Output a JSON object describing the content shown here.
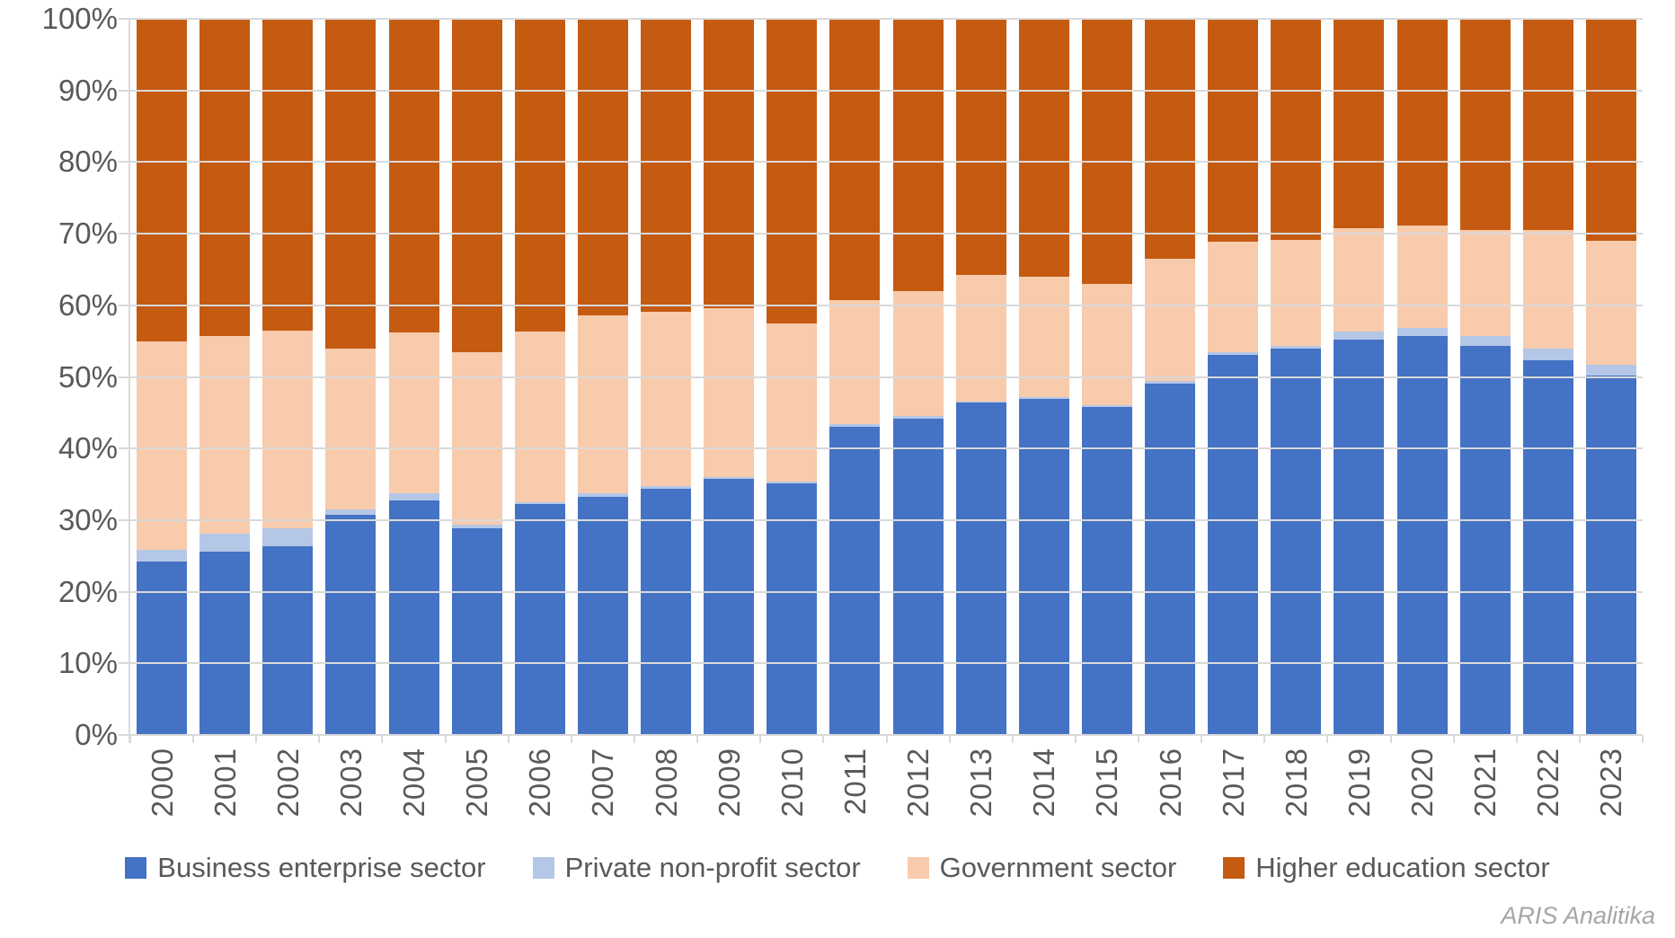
{
  "chart_data": {
    "type": "bar",
    "subtype": "stacked-100-percent",
    "title": "",
    "categories": [
      "2000",
      "2001",
      "2002",
      "2003",
      "2004",
      "2005",
      "2006",
      "2007",
      "2008",
      "2009",
      "2010",
      "2011",
      "2012",
      "2013",
      "2014",
      "2015",
      "2016",
      "2017",
      "2018",
      "2019",
      "2020",
      "2021",
      "2022",
      "2023"
    ],
    "series": [
      {
        "name": "Business enterprise sector",
        "color": "#4472C4",
        "values": [
          24.2,
          25.6,
          26.4,
          30.7,
          32.8,
          28.9,
          32.2,
          33.3,
          34.4,
          35.8,
          35.1,
          43.1,
          44.2,
          46.4,
          46.9,
          45.8,
          49.1,
          53.1,
          53.9,
          55.2,
          55.7,
          54.3,
          52.3,
          50.2
        ]
      },
      {
        "name": "Private non-profit sector",
        "color": "#B4C7E7",
        "values": [
          1.6,
          2.5,
          2.5,
          0.8,
          0.9,
          0.4,
          0.3,
          0.4,
          0.3,
          0.2,
          0.3,
          0.3,
          0.3,
          0.2,
          0.3,
          0.2,
          0.3,
          0.4,
          0.4,
          1.1,
          1.2,
          1.4,
          1.7,
          1.5
        ]
      },
      {
        "name": "Government sector",
        "color": "#F7CBAC",
        "values": [
          29.2,
          27.6,
          27.6,
          22.4,
          22.5,
          24.1,
          23.9,
          24.9,
          24.4,
          23.6,
          22.1,
          17.3,
          17.5,
          17.6,
          16.8,
          17.0,
          17.1,
          15.4,
          14.8,
          14.5,
          14.3,
          14.8,
          16.5,
          17.3
        ]
      },
      {
        "name": "Higher education sector",
        "color": "#C55A11",
        "values": [
          45.0,
          44.3,
          43.5,
          46.1,
          43.8,
          46.6,
          43.6,
          41.4,
          40.9,
          40.4,
          42.5,
          39.3,
          38.0,
          35.8,
          36.0,
          37.0,
          33.5,
          31.1,
          30.9,
          29.2,
          28.8,
          29.5,
          29.5,
          31.0
        ]
      }
    ],
    "y_axis": {
      "min": 0,
      "max": 100,
      "tick_step": 10,
      "tick_labels": [
        "0%",
        "10%",
        "20%",
        "30%",
        "40%",
        "50%",
        "60%",
        "70%",
        "80%",
        "90%",
        "100%"
      ],
      "grid": true
    },
    "x_axis": {
      "label_rotation_deg": 90
    },
    "legend": {
      "position": "bottom"
    }
  },
  "caption": "ARIS Analitika",
  "colors": {
    "background": "#FFFFFF",
    "grid": "#D9D9D9",
    "axis_text": "#595959",
    "caption_text": "#A6A6A6"
  }
}
